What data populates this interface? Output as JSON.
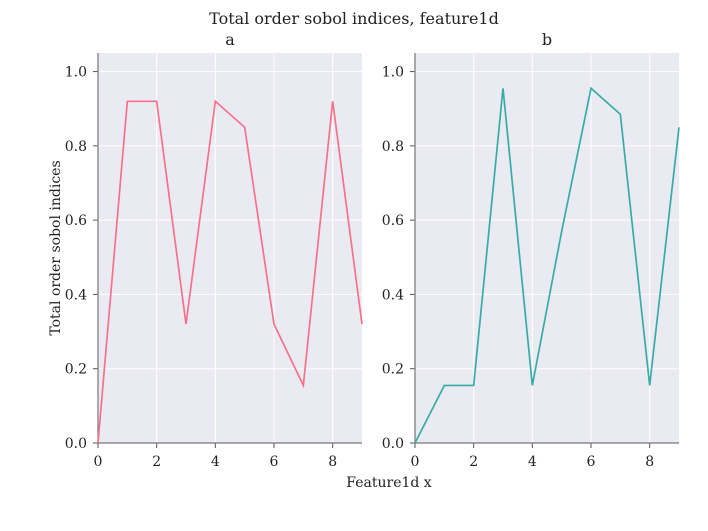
{
  "chart_data": {
    "type": "line",
    "title": "Total order sobol indices, feature1d",
    "xlabel": "Feature1d x",
    "ylabel": "Total order sobol indices",
    "grid": true,
    "background": "#eaeaf2",
    "grid_color": "#ffffff",
    "xlim": [
      0,
      9
    ],
    "ylim": [
      0,
      1.05
    ],
    "xticks": [
      0,
      2,
      4,
      6,
      8
    ],
    "yticks": [
      0.0,
      0.2,
      0.4,
      0.6,
      0.8,
      1.0
    ],
    "panels": [
      {
        "title": "a",
        "color": "#f77189",
        "x": [
          0,
          1,
          2,
          3,
          4,
          5,
          6,
          7,
          8,
          9
        ],
        "values": [
          0.0,
          0.92,
          0.92,
          0.32,
          0.92,
          0.85,
          0.32,
          0.155,
          0.92,
          0.32
        ]
      },
      {
        "title": "b",
        "color": "#36ada4",
        "x": [
          0,
          1,
          2,
          3,
          4,
          5,
          6,
          7,
          8,
          9
        ],
        "values": [
          0.0,
          0.155,
          0.155,
          0.955,
          0.155,
          0.57,
          0.955,
          0.885,
          0.155,
          0.85
        ]
      }
    ]
  }
}
